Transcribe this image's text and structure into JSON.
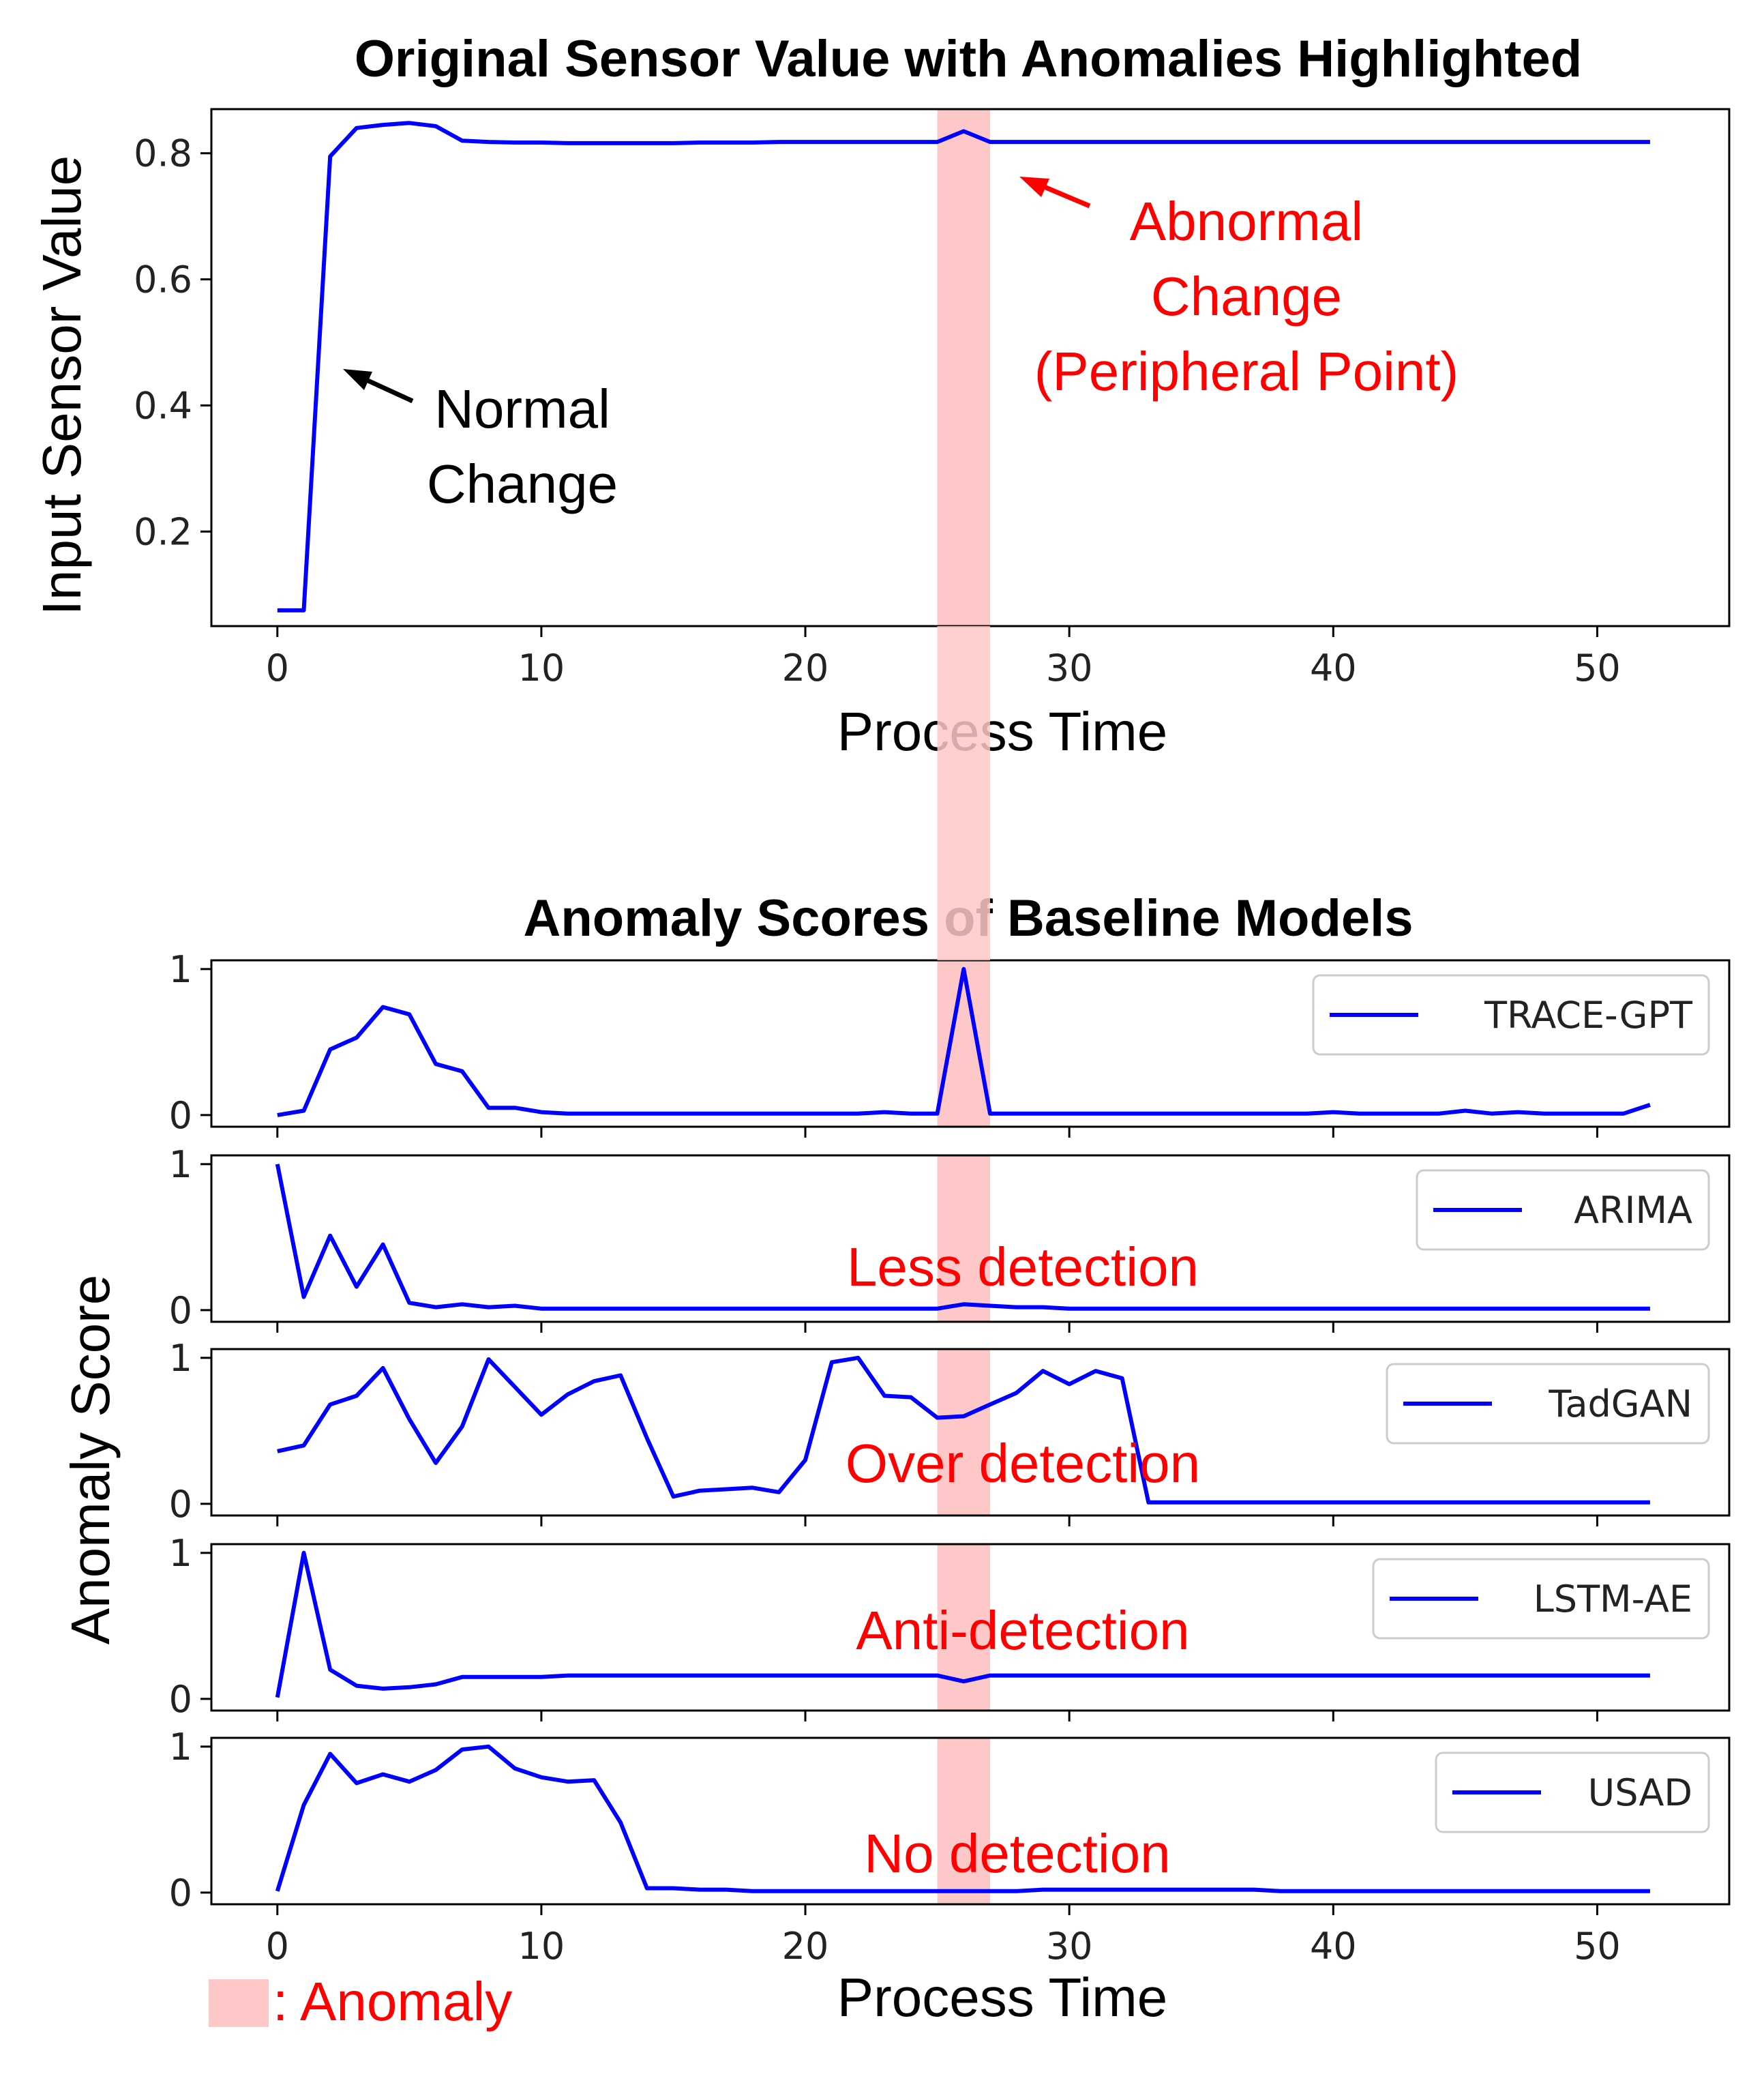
{
  "chart_data": [
    {
      "id": "sensor",
      "type": "line",
      "title": "Original Sensor Value with Anomalies Highlighted",
      "xlabel": "Process Time",
      "ylabel": "Input Sensor Value",
      "xlim": [
        -2.5,
        55
      ],
      "ylim": [
        0.05,
        0.87
      ],
      "xticks": [
        0,
        10,
        20,
        30,
        40,
        50
      ],
      "xtick_labels": [
        "0",
        "10",
        "20",
        "30",
        "40",
        "50"
      ],
      "yticks": [
        0.2,
        0.4,
        0.6,
        0.8
      ],
      "ytick_labels": [
        "0.2",
        "0.4",
        "0.6",
        "0.8"
      ],
      "grid": false,
      "series": [
        {
          "name": "Input Sensor Value",
          "color": "#0000ff",
          "x": [
            0,
            1,
            2,
            3,
            4,
            5,
            6,
            7,
            8,
            9,
            10,
            11,
            12,
            13,
            14,
            15,
            16,
            17,
            18,
            19,
            20,
            21,
            22,
            23,
            24,
            25,
            26,
            27,
            28,
            29,
            30,
            31,
            32,
            33,
            34,
            35,
            36,
            37,
            38,
            39,
            40,
            41,
            42,
            43,
            44,
            45,
            46,
            47,
            48,
            49,
            50,
            51,
            52
          ],
          "values": [
            0.075,
            0.075,
            0.795,
            0.84,
            0.845,
            0.848,
            0.843,
            0.82,
            0.818,
            0.817,
            0.817,
            0.816,
            0.816,
            0.816,
            0.816,
            0.816,
            0.817,
            0.817,
            0.817,
            0.818,
            0.818,
            0.818,
            0.818,
            0.818,
            0.818,
            0.818,
            0.835,
            0.818,
            0.818,
            0.818,
            0.818,
            0.818,
            0.818,
            0.818,
            0.818,
            0.818,
            0.818,
            0.818,
            0.818,
            0.818,
            0.818,
            0.818,
            0.818,
            0.818,
            0.818,
            0.818,
            0.818,
            0.818,
            0.818,
            0.818,
            0.818,
            0.818,
            0.818
          ]
        }
      ],
      "anomaly_span": [
        25,
        27
      ],
      "annotations": [
        {
          "id": "normal-change",
          "lines": [
            "Normal",
            "Change"
          ],
          "color": "#000000",
          "arrow_to": [
            2.5,
            0.42
          ]
        },
        {
          "id": "abnormal-change",
          "lines": [
            "Abnormal",
            "Change",
            "(Peripheral Point)"
          ],
          "color": "#ff0000",
          "arrow_to": [
            27.8,
            0.8
          ]
        }
      ]
    },
    {
      "id": "scores",
      "type": "line",
      "title": "Anomaly Scores of Baseline Models",
      "xlabel": "Process Time",
      "ylabel": "Anomaly Score",
      "xlim": [
        -2.5,
        55
      ],
      "ylim": [
        -0.08,
        1.06
      ],
      "xticks": [
        0,
        10,
        20,
        30,
        40,
        50
      ],
      "xtick_labels": [
        "0",
        "10",
        "20",
        "30",
        "40",
        "50"
      ],
      "yticks": [
        0,
        1
      ],
      "ytick_labels": [
        "0",
        "1"
      ],
      "grid": false,
      "anomaly_span": [
        25,
        27
      ],
      "legend_position": "right",
      "panels": [
        {
          "name": "TRACE-GPT",
          "color": "#0000ff",
          "annotation": "",
          "values": [
            0.0,
            0.03,
            0.45,
            0.53,
            0.74,
            0.69,
            0.35,
            0.3,
            0.05,
            0.05,
            0.02,
            0.01,
            0.01,
            0.01,
            0.01,
            0.01,
            0.01,
            0.01,
            0.01,
            0.01,
            0.01,
            0.01,
            0.01,
            0.02,
            0.01,
            0.01,
            1.0,
            0.01,
            0.01,
            0.01,
            0.01,
            0.01,
            0.01,
            0.01,
            0.01,
            0.01,
            0.01,
            0.01,
            0.01,
            0.01,
            0.02,
            0.01,
            0.01,
            0.01,
            0.01,
            0.03,
            0.01,
            0.02,
            0.01,
            0.01,
            0.01,
            0.01,
            0.07
          ]
        },
        {
          "name": "ARIMA",
          "color": "#0000ff",
          "annotation": "Less detection",
          "values": [
            1.0,
            0.09,
            0.51,
            0.16,
            0.45,
            0.05,
            0.02,
            0.04,
            0.02,
            0.03,
            0.01,
            0.01,
            0.01,
            0.01,
            0.01,
            0.01,
            0.01,
            0.01,
            0.01,
            0.01,
            0.01,
            0.01,
            0.01,
            0.01,
            0.01,
            0.01,
            0.04,
            0.03,
            0.02,
            0.02,
            0.01,
            0.01,
            0.01,
            0.01,
            0.01,
            0.01,
            0.01,
            0.01,
            0.01,
            0.01,
            0.01,
            0.01,
            0.01,
            0.01,
            0.01,
            0.01,
            0.01,
            0.01,
            0.01,
            0.01,
            0.01,
            0.01,
            0.01
          ]
        },
        {
          "name": "TadGAN",
          "color": "#0000ff",
          "annotation": "Over detection",
          "values": [
            0.36,
            0.4,
            0.68,
            0.74,
            0.93,
            0.58,
            0.28,
            0.53,
            0.99,
            0.8,
            0.61,
            0.75,
            0.84,
            0.88,
            0.45,
            0.05,
            0.09,
            0.1,
            0.11,
            0.08,
            0.3,
            0.97,
            1.0,
            0.74,
            0.73,
            0.59,
            0.6,
            0.68,
            0.76,
            0.91,
            0.82,
            0.91,
            0.86,
            0.01,
            0.01,
            0.01,
            0.01,
            0.01,
            0.01,
            0.01,
            0.01,
            0.01,
            0.01,
            0.01,
            0.01,
            0.01,
            0.01,
            0.01,
            0.01,
            0.01,
            0.01,
            0.01,
            0.01
          ]
        },
        {
          "name": "LSTM-AE",
          "color": "#0000ff",
          "annotation": "Anti-detection",
          "values": [
            0.01,
            1.0,
            0.2,
            0.09,
            0.07,
            0.08,
            0.1,
            0.15,
            0.15,
            0.15,
            0.15,
            0.16,
            0.16,
            0.16,
            0.16,
            0.16,
            0.16,
            0.16,
            0.16,
            0.16,
            0.16,
            0.16,
            0.16,
            0.16,
            0.16,
            0.16,
            0.12,
            0.16,
            0.16,
            0.16,
            0.16,
            0.16,
            0.16,
            0.16,
            0.16,
            0.16,
            0.16,
            0.16,
            0.16,
            0.16,
            0.16,
            0.16,
            0.16,
            0.16,
            0.16,
            0.16,
            0.16,
            0.16,
            0.16,
            0.16,
            0.16,
            0.16,
            0.16
          ]
        },
        {
          "name": "USAD",
          "color": "#0000ff",
          "annotation": "No detection",
          "values": [
            0.01,
            0.6,
            0.95,
            0.75,
            0.81,
            0.76,
            0.84,
            0.98,
            1.0,
            0.85,
            0.79,
            0.76,
            0.77,
            0.48,
            0.03,
            0.03,
            0.02,
            0.02,
            0.01,
            0.01,
            0.01,
            0.01,
            0.01,
            0.01,
            0.01,
            0.01,
            0.01,
            0.01,
            0.01,
            0.02,
            0.02,
            0.02,
            0.02,
            0.02,
            0.02,
            0.02,
            0.02,
            0.02,
            0.01,
            0.01,
            0.01,
            0.01,
            0.01,
            0.01,
            0.01,
            0.01,
            0.01,
            0.01,
            0.01,
            0.01,
            0.01,
            0.01,
            0.01
          ]
        }
      ]
    }
  ],
  "anomaly_legend": {
    "label": ": Anomaly",
    "color": "#ffc8c8"
  }
}
